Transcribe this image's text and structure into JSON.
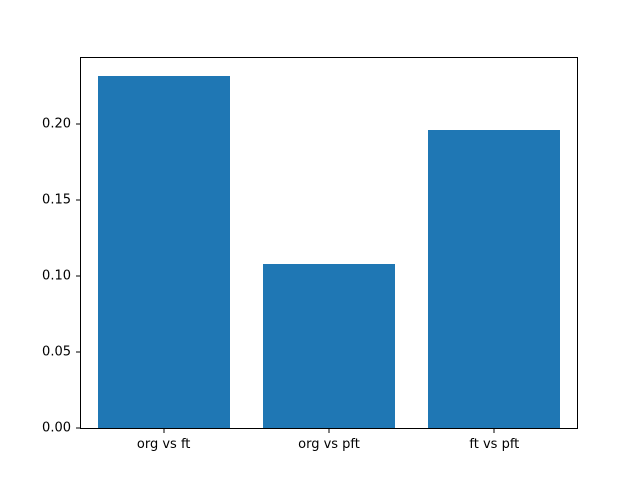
{
  "chart_data": {
    "type": "bar",
    "title": "",
    "xlabel": "",
    "ylabel": "",
    "categories": [
      "org vs ft",
      "org vs pft",
      "ft vs pft"
    ],
    "values": [
      0.232,
      0.108,
      0.196
    ],
    "yticks": [
      0.0,
      0.05,
      0.1,
      0.15,
      0.2
    ],
    "ytick_labels": [
      "0.00",
      "0.05",
      "0.10",
      "0.15",
      "0.20"
    ],
    "ylim": [
      0,
      0.2437
    ],
    "bar_color": "#1f77b4",
    "grid": false,
    "legend": false,
    "bar_width_fraction": 0.8
  }
}
